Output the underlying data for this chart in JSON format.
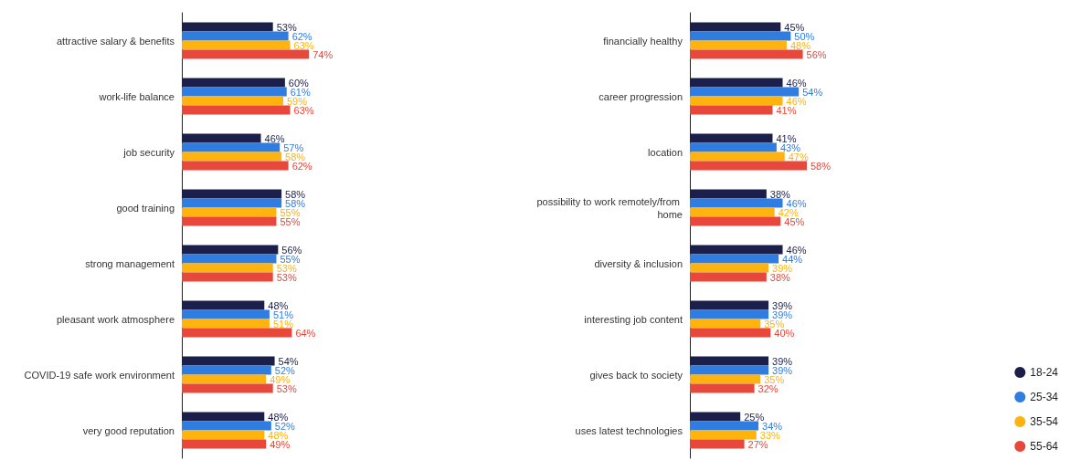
{
  "chart_data": [
    {
      "type": "bar",
      "orientation": "horizontal",
      "legend": false,
      "categories": [
        "attractive salary & benefits",
        "work-life balance",
        "job security",
        "good training",
        "strong management",
        "pleasant work atmosphere",
        "COVID-19 safe work environment",
        "very good reputation"
      ],
      "series": [
        {
          "color": "#1b1f4a",
          "values": [
            53,
            60,
            46,
            58,
            56,
            48,
            54,
            48
          ],
          "value_labels": [
            "53%",
            "60%",
            "46%",
            "58%",
            "56%",
            "48%",
            "54%",
            "48%"
          ]
        },
        {
          "color": "#2f7de1",
          "values": [
            62,
            61,
            57,
            58,
            55,
            51,
            52,
            52
          ],
          "value_labels": [
            "62%",
            "61%",
            "57%",
            "58%",
            "55%",
            "51%",
            "52%",
            "52%"
          ]
        },
        {
          "color": "#ffb30f",
          "values": [
            63,
            59,
            58,
            55,
            53,
            51,
            49,
            48
          ],
          "value_labels": [
            "63%",
            "59%",
            "58%",
            "55%",
            "53%",
            "51%",
            "49%",
            "48%"
          ]
        },
        {
          "color": "#e8473b",
          "values": [
            74,
            63,
            62,
            55,
            53,
            64,
            53,
            49
          ],
          "value_labels": [
            "74%",
            "63%",
            "62%",
            "55%",
            "53%",
            "64%",
            "53%",
            "49%"
          ]
        }
      ]
    },
    {
      "type": "bar",
      "orientation": "horizontal",
      "legend": "bottom right",
      "categories": [
        "financially healthy",
        "career progression",
        "location",
        "possibility to work remotely/from home",
        "diversity & inclusion",
        "interesting job content",
        "gives back to society",
        "uses latest technologies"
      ],
      "series": [
        {
          "name": "18-24",
          "color": "#1b1f4a",
          "values": [
            45,
            46,
            41,
            38,
            46,
            39,
            39,
            25
          ],
          "value_labels": [
            "45%",
            "46%",
            "41%",
            "38%",
            "46%",
            "39%",
            "39%",
            "25%"
          ]
        },
        {
          "name": "25-34",
          "color": "#2f7de1",
          "values": [
            50,
            54,
            43,
            46,
            44,
            39,
            39,
            34
          ],
          "value_labels": [
            "50%",
            "54%",
            "43%",
            "46%",
            "44%",
            "39%",
            "39%",
            "34%"
          ]
        },
        {
          "name": "35-54",
          "color": "#ffb30f",
          "values": [
            48,
            46,
            47,
            42,
            39,
            35,
            35,
            33
          ],
          "value_labels": [
            "48%",
            "46%",
            "47%",
            "42%",
            "39%",
            "35%",
            "35%",
            "33%"
          ]
        },
        {
          "name": "55-64",
          "color": "#e8473b",
          "values": [
            56,
            41,
            58,
            45,
            38,
            40,
            32,
            27
          ],
          "value_labels": [
            "56%",
            "41%",
            "58%",
            "45%",
            "38%",
            "40%",
            "32%",
            "27%"
          ]
        }
      ]
    }
  ]
}
